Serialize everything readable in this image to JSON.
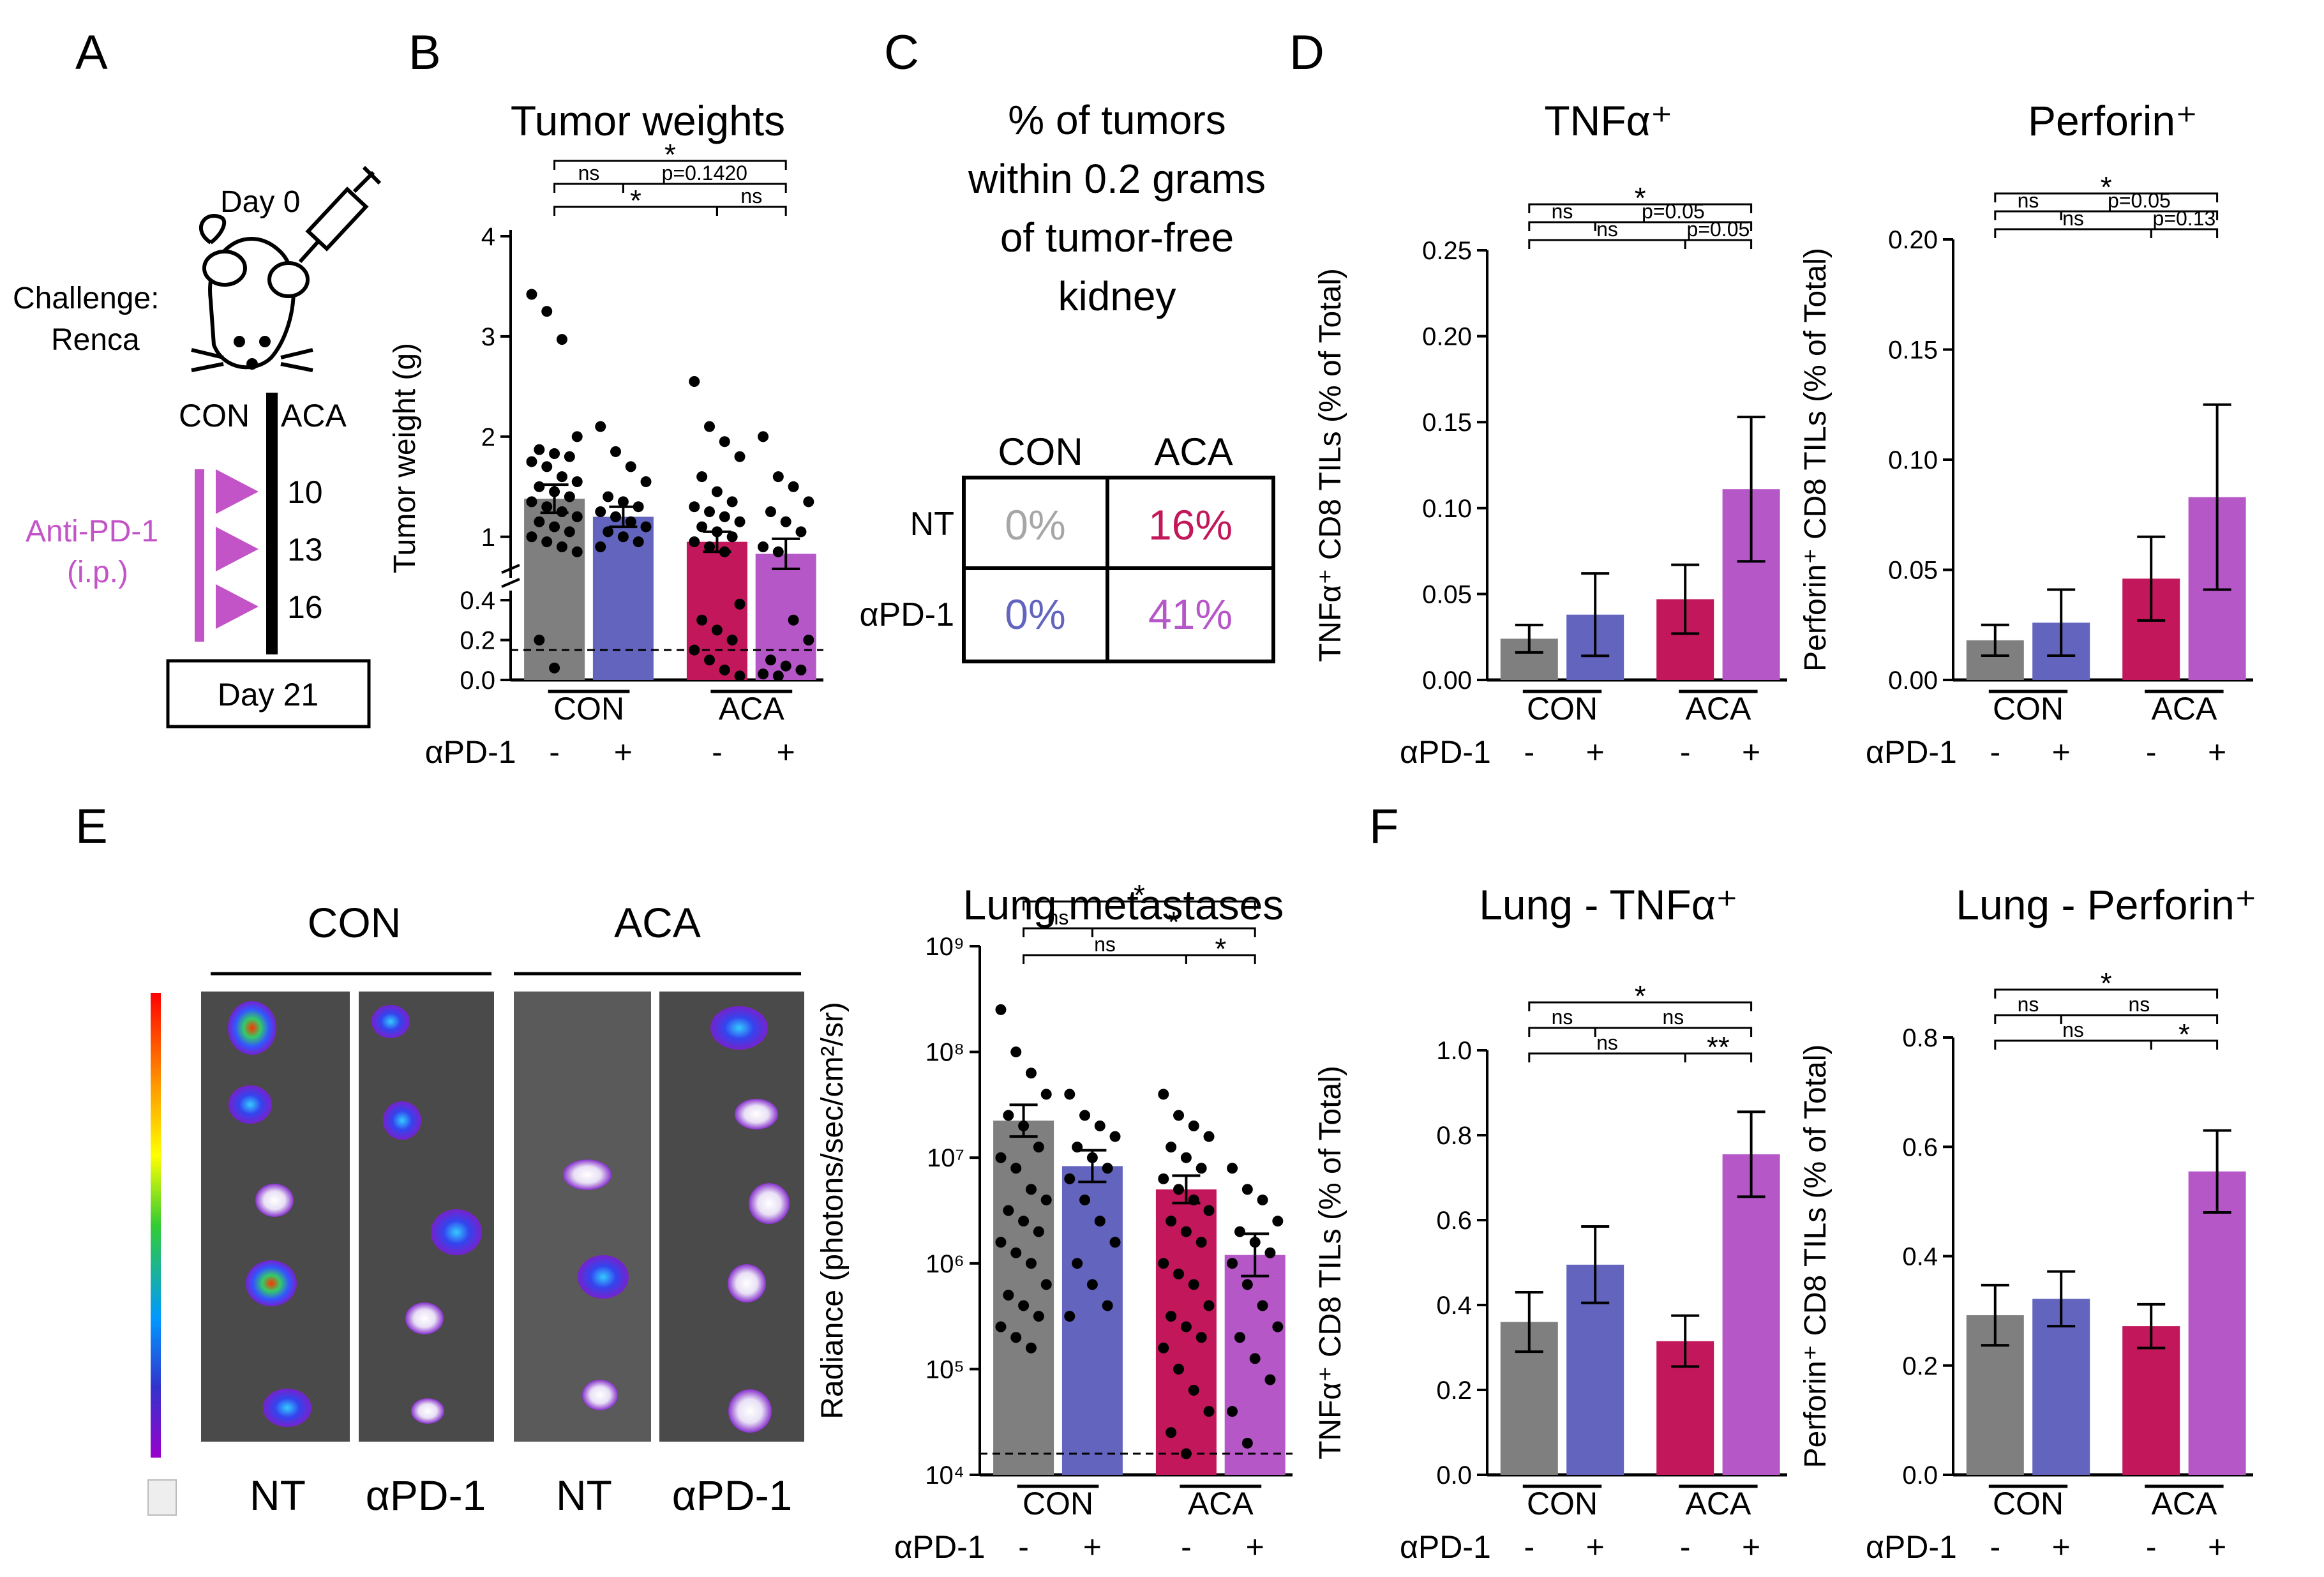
{
  "colors": {
    "con_nt": "#7f7f7f",
    "con_pd1": "#6264be",
    "aca_nt": "#c2185b",
    "aca_pd1": "#b657c8",
    "accent": "#c254c8",
    "black": "#000000"
  },
  "panel_letters": {
    "a": "A",
    "b": "B",
    "c": "C",
    "d": "D",
    "e": "E",
    "f": "F"
  },
  "panel_a": {
    "day0": "Day 0",
    "challenge_line1": "Challenge:",
    "challenge_line2": "Renca",
    "con": "CON",
    "aca": "ACA",
    "dose_days": [
      "10",
      "13",
      "16"
    ],
    "treatment_line1": "Anti-PD-1",
    "treatment_line2": "(i.p.)",
    "endpoint": "Day 21"
  },
  "panel_c": {
    "title_lines": [
      "% of tumors",
      "within 0.2 grams",
      "of tumor-free",
      "kidney"
    ],
    "col_headers": [
      "CON",
      "ACA"
    ],
    "row_headers": [
      "NT",
      "αPD-1"
    ],
    "cells": [
      [
        "0%",
        "16%"
      ],
      [
        "0%",
        "41%"
      ]
    ],
    "cell_colors": [
      [
        "#a6a6a6",
        "#c2185b"
      ],
      [
        "#6264be",
        "#b657c8"
      ]
    ]
  },
  "panel_e": {
    "groups": [
      "CON",
      "ACA"
    ],
    "image_labels": [
      "NT",
      "αPD-1",
      "NT",
      "αPD-1"
    ]
  },
  "chart_data": [
    {
      "id": "tumor_weights",
      "type": "bar",
      "title": "Tumor weights",
      "ylabel": "Tumor weight (g)",
      "yticks": [
        "0.0",
        "0.2",
        "0.4",
        "1",
        "2",
        "3",
        "4"
      ],
      "lower_segment": [
        0,
        0.4
      ],
      "upper_segment": [
        0.75,
        4
      ],
      "scale": "broken-linear",
      "categories": [
        "CON NT",
        "CON αPD-1",
        "ACA NT",
        "ACA αPD-1"
      ],
      "values": [
        1.38,
        1.2,
        0.95,
        0.83
      ],
      "errors": [
        0.14,
        0.1,
        0.1,
        0.15
      ],
      "points": [
        [
          3.42,
          3.25,
          2.97,
          2.0,
          1.87,
          1.83,
          1.8,
          1.75,
          1.7,
          1.6,
          1.55,
          1.5,
          1.45,
          1.4,
          1.35,
          1.3,
          1.25,
          1.2,
          1.15,
          1.1,
          1.05,
          1.0,
          0.95,
          0.9,
          0.85,
          0.2,
          0.06
        ],
        [
          2.1,
          1.85,
          1.7,
          1.55,
          1.4,
          1.35,
          1.3,
          1.25,
          1.2,
          1.15,
          1.1,
          1.05,
          1.0,
          0.95,
          0.9
        ],
        [
          2.55,
          2.1,
          1.95,
          1.8,
          1.6,
          1.45,
          1.35,
          1.3,
          1.25,
          1.2,
          1.15,
          1.1,
          1.05,
          1.0,
          0.95,
          0.9,
          0.85,
          0.38,
          0.3,
          0.25,
          0.2,
          0.15,
          0.1,
          0.05,
          0.02
        ],
        [
          2.0,
          1.6,
          1.5,
          1.35,
          1.25,
          1.15,
          1.05,
          0.9,
          0.85,
          0.3,
          0.2,
          0.1,
          0.07,
          0.05,
          0.03,
          0.02
        ]
      ],
      "reference_line": 0.15,
      "group_labels": [
        "CON",
        "ACA"
      ],
      "treatment_label": "αPD-1",
      "treatment_signs": [
        "-",
        "+",
        "-",
        "+"
      ],
      "brackets": [
        {
          "from": 0,
          "to": 3,
          "label": "*"
        },
        {
          "from": 0,
          "to": 1,
          "label": "ns"
        },
        {
          "from": 1,
          "to": 3,
          "label": "p=0.1420"
        },
        {
          "from": 0,
          "to": 2,
          "label": "*"
        },
        {
          "from": 2,
          "to": 3,
          "label": "ns"
        }
      ]
    },
    {
      "id": "tnf",
      "type": "bar",
      "title": "TNFα⁺",
      "ylabel": "TNFα⁺ CD8 TILs (% of Total)",
      "ylim": [
        0,
        0.25
      ],
      "yticks": [
        "0.00",
        "0.05",
        "0.10",
        "0.15",
        "0.20",
        "0.25"
      ],
      "categories": [
        "CON NT",
        "CON αPD-1",
        "ACA NT",
        "ACA αPD-1"
      ],
      "values": [
        0.024,
        0.038,
        0.047,
        0.111
      ],
      "errors": [
        0.008,
        0.024,
        0.02,
        0.042
      ],
      "group_labels": [
        "CON",
        "ACA"
      ],
      "treatment_label": "αPD-1",
      "treatment_signs": [
        "-",
        "+",
        "-",
        "+"
      ],
      "brackets": [
        {
          "from": 0,
          "to": 3,
          "label": "*"
        },
        {
          "from": 0,
          "to": 1,
          "label": "ns"
        },
        {
          "from": 1,
          "to": 3,
          "label": "p=0.05"
        },
        {
          "from": 0,
          "to": 2,
          "label": "ns"
        },
        {
          "from": 2,
          "to": 3,
          "label": "p=0.05"
        }
      ]
    },
    {
      "id": "perforin",
      "type": "bar",
      "title": "Perforin⁺",
      "ylabel": "Perforin⁺ CD8 TILs (% of Total)",
      "ylim": [
        0,
        0.2
      ],
      "yticks": [
        "0.00",
        "0.05",
        "0.10",
        "0.15",
        "0.20"
      ],
      "categories": [
        "CON NT",
        "CON αPD-1",
        "ACA NT",
        "ACA αPD-1"
      ],
      "values": [
        0.018,
        0.026,
        0.046,
        0.083
      ],
      "errors": [
        0.007,
        0.015,
        0.019,
        0.042
      ],
      "group_labels": [
        "CON",
        "ACA"
      ],
      "treatment_label": "αPD-1",
      "treatment_signs": [
        "-",
        "+",
        "-",
        "+"
      ],
      "brackets": [
        {
          "from": 0,
          "to": 3,
          "label": "*"
        },
        {
          "from": 0,
          "to": 1,
          "label": "ns"
        },
        {
          "from": 1,
          "to": 3,
          "label": "p=0.05"
        },
        {
          "from": 0,
          "to": 2,
          "label": "ns"
        },
        {
          "from": 2,
          "to": 3,
          "label": "p=0.13"
        }
      ]
    },
    {
      "id": "lung_met",
      "type": "bar",
      "title": "Lung metastases",
      "ylabel": "Radiance (photons/sec/cm²/sr)",
      "scale": "log10",
      "ylim_exp": [
        4,
        9
      ],
      "yticks": [
        "10⁴",
        "10⁵",
        "10⁶",
        "10⁷",
        "10⁸",
        "10⁹"
      ],
      "categories": [
        "CON NT",
        "CON αPD-1",
        "ACA NT",
        "ACA αPD-1"
      ],
      "values_log10": [
        7.35,
        6.92,
        6.7,
        6.08
      ],
      "errors_log10": [
        0.15,
        0.15,
        0.13,
        0.2
      ],
      "points_log10": [
        [
          8.4,
          8.0,
          7.8,
          7.6,
          7.4,
          7.3,
          7.1,
          7.0,
          6.9,
          6.7,
          6.6,
          6.5,
          6.4,
          6.3,
          6.2,
          6.1,
          6.0,
          5.8,
          5.7,
          5.6,
          5.5,
          5.4,
          5.3,
          5.2
        ],
        [
          7.6,
          7.4,
          7.3,
          7.2,
          7.1,
          7.0,
          6.9,
          6.8,
          6.6,
          6.4,
          6.2,
          6.0,
          5.8,
          5.6,
          5.5
        ],
        [
          7.6,
          7.4,
          7.3,
          7.2,
          7.1,
          7.0,
          6.9,
          6.8,
          6.7,
          6.6,
          6.5,
          6.4,
          6.3,
          6.2,
          6.0,
          5.9,
          5.8,
          5.6,
          5.5,
          5.4,
          5.3,
          5.2,
          5.0,
          4.8,
          4.6,
          4.4,
          4.2
        ],
        [
          6.9,
          6.7,
          6.6,
          6.4,
          6.3,
          6.2,
          6.1,
          6.0,
          5.8,
          5.6,
          5.4,
          5.3,
          5.1,
          4.9,
          4.6,
          4.3
        ]
      ],
      "reference_line_log10": 4.2,
      "group_labels": [
        "CON",
        "ACA"
      ],
      "treatment_label": "αPD-1",
      "treatment_signs": [
        "-",
        "+",
        "-",
        "+"
      ],
      "brackets": [
        {
          "from": 0,
          "to": 3,
          "label": "*"
        },
        {
          "from": 0,
          "to": 1,
          "label": "ns"
        },
        {
          "from": 1,
          "to": 3,
          "label": "*"
        },
        {
          "from": 0,
          "to": 2,
          "label": "ns"
        },
        {
          "from": 2,
          "to": 3,
          "label": "*"
        }
      ]
    },
    {
      "id": "lung_tnf",
      "type": "bar",
      "title": "Lung - TNFα⁺",
      "ylabel": "TNFα⁺ CD8 TILs (% of Total)",
      "ylim": [
        0,
        1.0
      ],
      "yticks": [
        "0.0",
        "0.2",
        "0.4",
        "0.6",
        "0.8",
        "1.0"
      ],
      "categories": [
        "CON NT",
        "CON αPD-1",
        "ACA NT",
        "ACA αPD-1"
      ],
      "values": [
        0.36,
        0.495,
        0.315,
        0.755
      ],
      "errors": [
        0.07,
        0.09,
        0.06,
        0.1
      ],
      "group_labels": [
        "CON",
        "ACA"
      ],
      "treatment_label": "αPD-1",
      "treatment_signs": [
        "-",
        "+",
        "-",
        "+"
      ],
      "brackets": [
        {
          "from": 0,
          "to": 3,
          "label": "*"
        },
        {
          "from": 0,
          "to": 1,
          "label": "ns"
        },
        {
          "from": 1,
          "to": 3,
          "label": "ns"
        },
        {
          "from": 0,
          "to": 2,
          "label": "ns"
        },
        {
          "from": 2,
          "to": 3,
          "label": "**"
        }
      ]
    },
    {
      "id": "lung_perforin",
      "type": "bar",
      "title": "Lung - Perforin⁺",
      "ylabel": "Perforin⁺ CD8 TILs (% of Total)",
      "ylim": [
        0,
        0.8
      ],
      "yticks": [
        "0.0",
        "0.2",
        "0.4",
        "0.6",
        "0.8"
      ],
      "categories": [
        "CON NT",
        "CON αPD-1",
        "ACA NT",
        "ACA αPD-1"
      ],
      "values": [
        0.292,
        0.322,
        0.272,
        0.555
      ],
      "errors": [
        0.055,
        0.05,
        0.04,
        0.075
      ],
      "group_labels": [
        "CON",
        "ACA"
      ],
      "treatment_label": "αPD-1",
      "treatment_signs": [
        "-",
        "+",
        "-",
        "+"
      ],
      "brackets": [
        {
          "from": 0,
          "to": 3,
          "label": "*"
        },
        {
          "from": 0,
          "to": 1,
          "label": "ns"
        },
        {
          "from": 1,
          "to": 3,
          "label": "ns"
        },
        {
          "from": 0,
          "to": 2,
          "label": "ns"
        },
        {
          "from": 2,
          "to": 3,
          "label": "*"
        }
      ]
    }
  ]
}
